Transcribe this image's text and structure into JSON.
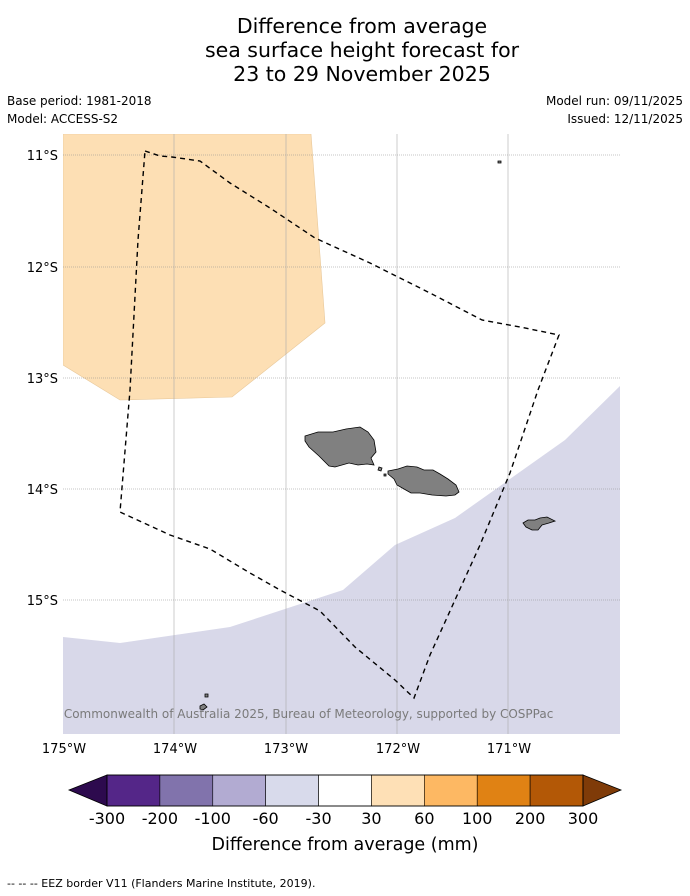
{
  "title": {
    "line1": "Difference from average",
    "line2": "sea surface height forecast for",
    "line3": "23 to 29 November 2025"
  },
  "meta": {
    "base_period": "Base period: 1981-2018",
    "model": "Model: ACCESS-S2",
    "model_run": "Model run: 09/11/2025",
    "issued": "Issued: 12/11/2025"
  },
  "map": {
    "lat_labels": [
      "11°S",
      "12°S",
      "13°S",
      "14°S",
      "15°S"
    ],
    "lon_labels": [
      "175°W",
      "174°W",
      "173°W",
      "172°W",
      "171°W"
    ],
    "copyright": "© Commonwealth of Australia 2025, Bureau of Meteorology, supported by COSPPac",
    "land_color": "#808080",
    "positive_region_color": "#fddfb4",
    "negative_region_color": "#d8d8e9"
  },
  "colorbar": {
    "ticks": [
      "-300",
      "-200",
      "-100",
      "-60",
      "-30",
      "30",
      "60",
      "100",
      "200",
      "300"
    ],
    "colors": [
      "#2d0a4e",
      "#542688",
      "#8173ac",
      "#b2abd2",
      "#d8daeb",
      "#ffffff",
      "#fee0b6",
      "#fdb863",
      "#e08214",
      "#b35806",
      "#7f3b08"
    ],
    "label": "Difference from average (mm)"
  },
  "footer": {
    "legend": "--  --  -- EEZ border V11 (Flanders Marine Institute, 2019)."
  }
}
